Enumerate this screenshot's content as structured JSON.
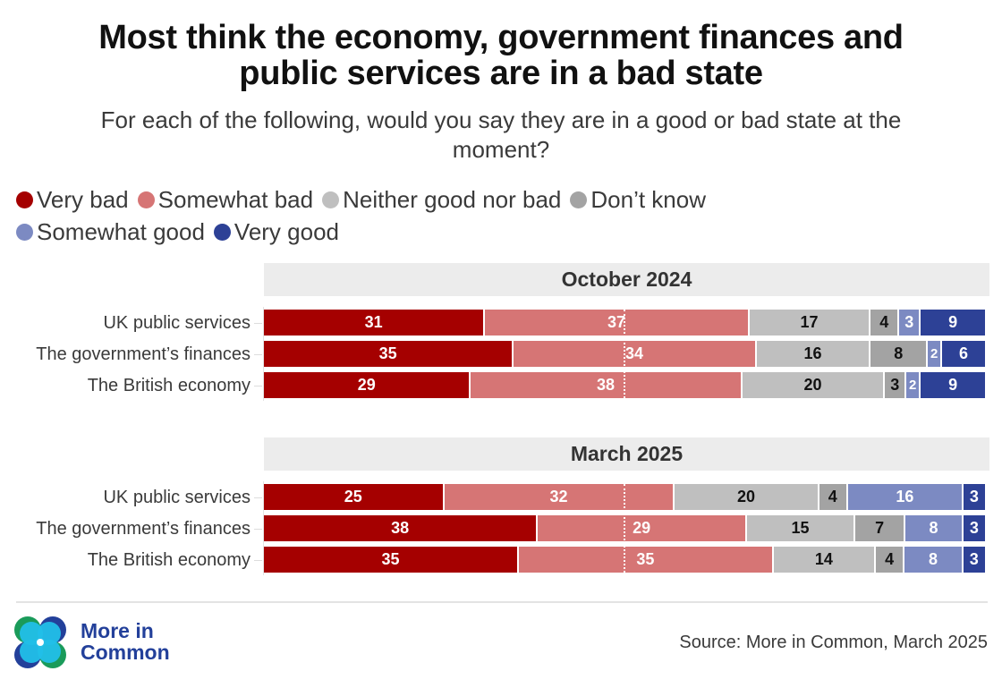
{
  "title_line1": "Most think the economy, government finances and",
  "title_line2": "public services are in a bad state",
  "subtitle_line1": "For each of the following, would you say they are in a good or bad state at the",
  "subtitle_line2": "moment?",
  "source": "Source: More in Common, March 2025",
  "logo": {
    "line1": "More in",
    "line2": "Common",
    "icon": "four-circle-logo-icon"
  },
  "chart_data": {
    "type": "bar",
    "orientation": "horizontal-stacked-100",
    "title": "Most think the economy, government finances and public services are in a bad state",
    "subtitle": "For each of the following, would you say they are in a good or bad state at the moment?",
    "legend": [
      {
        "name": "Very bad",
        "color": "#a50000"
      },
      {
        "name": "Somewhat bad",
        "color": "#d67575"
      },
      {
        "name": "Neither good nor bad",
        "color": "#bfbfbf"
      },
      {
        "name": "Don’t know",
        "color": "#a3a3a3"
      },
      {
        "name": "Somewhat good",
        "color": "#7c8ac2"
      },
      {
        "name": "Very good",
        "color": "#2d4196"
      }
    ],
    "legend_placement": "top-left",
    "label_colors": [
      "#ffffff",
      "#ffffff",
      "#111111",
      "#111111",
      "#ffffff",
      "#ffffff"
    ],
    "xlim": [
      0,
      100
    ],
    "midpoint_marker": 50,
    "panels": [
      {
        "title": "October 2024",
        "categories": [
          "UK public services",
          "The government’s finances",
          "The British economy"
        ],
        "rows": [
          [
            31,
            37,
            17,
            4,
            3,
            9
          ],
          [
            35,
            34,
            16,
            8,
            2,
            6
          ],
          [
            29,
            38,
            20,
            3,
            2,
            9
          ]
        ]
      },
      {
        "title": "March 2025",
        "categories": [
          "UK public services",
          "The government’s finances",
          "The British economy"
        ],
        "rows": [
          [
            25,
            32,
            20,
            4,
            16,
            3
          ],
          [
            38,
            29,
            15,
            7,
            8,
            3
          ],
          [
            35,
            35,
            14,
            4,
            8,
            3
          ]
        ]
      }
    ]
  }
}
